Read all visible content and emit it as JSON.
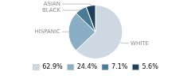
{
  "chart_data": {
    "type": "pie",
    "categories": [
      "WHITE",
      "HISPANIC",
      "BLACK",
      "ASIAN"
    ],
    "values": [
      62.9,
      24.4,
      7.1,
      5.6
    ],
    "value_labels": [
      "62.9%",
      "24.4%",
      "7.1%",
      "5.6%"
    ],
    "colors": [
      "#cdd8e3",
      "#8aafc4",
      "#4a7b96",
      "#1e3f5c"
    ],
    "legend": "bottom"
  }
}
